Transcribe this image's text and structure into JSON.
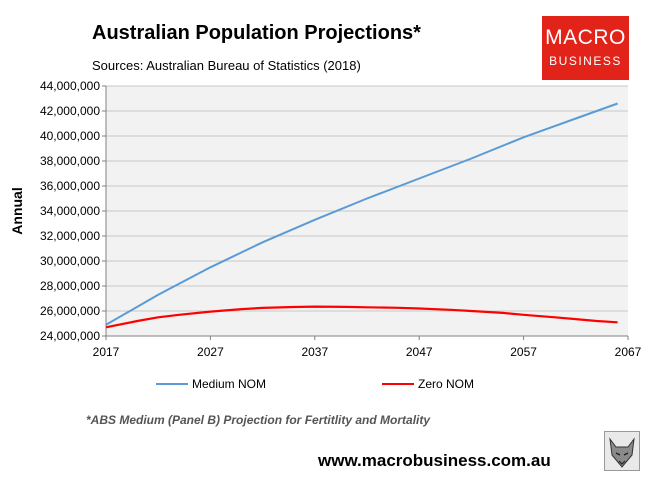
{
  "title": "Australian Population Projections*",
  "subtitle": "Sources: Australian Bureau of Statistics (2018)",
  "logo": {
    "line1": "MACRO",
    "line2": "BUSINESS",
    "color": "#e2231a"
  },
  "footnote": "*ABS Medium (Panel B) Projection for Fertitlity and Mortality",
  "website": "www.macrobusiness.com.au",
  "chart_data": {
    "type": "line",
    "ylabel": "Annual",
    "xlim": [
      2017,
      2067
    ],
    "ylim": [
      24000000,
      44000000
    ],
    "x_ticks": [
      2017,
      2027,
      2037,
      2047,
      2057,
      2067
    ],
    "y_ticks": [
      24000000,
      26000000,
      28000000,
      30000000,
      32000000,
      34000000,
      36000000,
      38000000,
      40000000,
      42000000,
      44000000
    ],
    "x_tick_labels": [
      "2017",
      "2027",
      "2037",
      "2047",
      "2057",
      "2067"
    ],
    "y_tick_labels": [
      "24,000,000",
      "26,000,000",
      "28,000,000",
      "30,000,000",
      "32,000,000",
      "34,000,000",
      "36,000,000",
      "38,000,000",
      "40,000,000",
      "42,000,000",
      "44,000,000"
    ],
    "grid": true,
    "legend_position": "bottom",
    "plot_background": "#f2f2f2",
    "series": [
      {
        "name": "Medium NOM",
        "color": "#5b9bd5",
        "x": [
          2017,
          2022,
          2027,
          2032,
          2037,
          2042,
          2047,
          2052,
          2057,
          2062,
          2066
        ],
        "values": [
          24900000,
          27300000,
          29500000,
          31500000,
          33300000,
          35000000,
          36600000,
          38200000,
          39900000,
          41400000,
          42600000
        ]
      },
      {
        "name": "Zero NOM",
        "color": "#ff0000",
        "x": [
          2017,
          2020,
          2022,
          2024,
          2027,
          2030,
          2032,
          2035,
          2037,
          2040,
          2042,
          2045,
          2047,
          2050,
          2052,
          2055,
          2057,
          2060,
          2062,
          2064,
          2066
        ],
        "values": [
          24700000,
          25200000,
          25500000,
          25700000,
          25950000,
          26150000,
          26250000,
          26320000,
          26350000,
          26330000,
          26300000,
          26260000,
          26200000,
          26100000,
          26000000,
          25850000,
          25700000,
          25500000,
          25350000,
          25200000,
          25100000
        ]
      }
    ]
  }
}
